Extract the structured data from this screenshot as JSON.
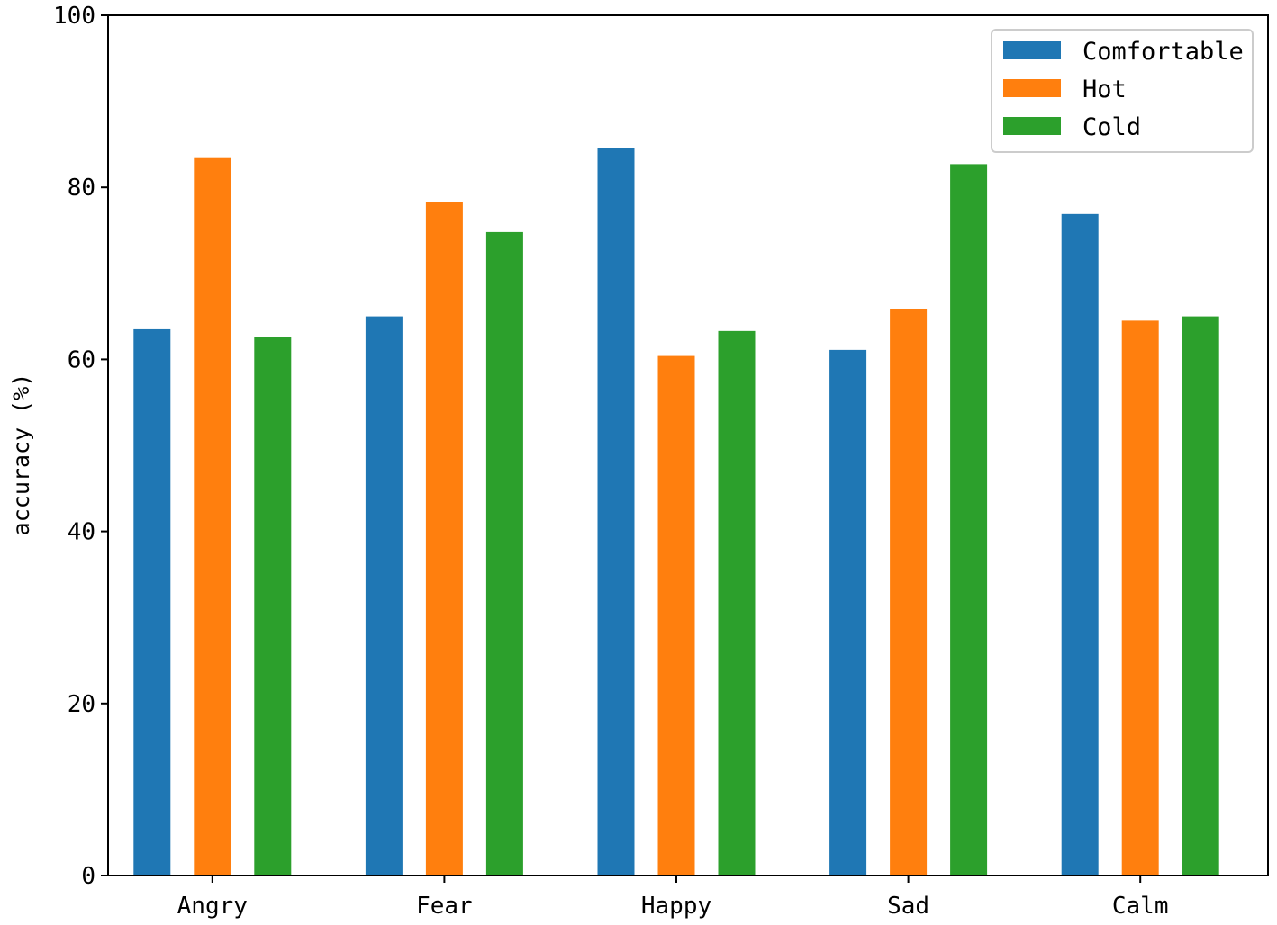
{
  "chart_data": {
    "type": "bar",
    "title": "",
    "xlabel": "",
    "ylabel": "accuracy (%)",
    "ylim": [
      0,
      100
    ],
    "yticks": [
      0,
      20,
      40,
      60,
      80,
      100
    ],
    "grid": false,
    "legend_position": "top-right",
    "categories": [
      "Angry",
      "Fear",
      "Happy",
      "Sad",
      "Calm"
    ],
    "series": [
      {
        "name": "Comfortable",
        "color": "#1f77b4",
        "values": [
          63.5,
          65.0,
          84.6,
          61.1,
          76.9
        ]
      },
      {
        "name": "Hot",
        "color": "#ff7f0e",
        "values": [
          83.4,
          78.3,
          60.4,
          65.9,
          64.5
        ]
      },
      {
        "name": "Cold",
        "color": "#2ca02c",
        "values": [
          62.6,
          74.8,
          63.3,
          82.7,
          65.0
        ]
      }
    ]
  }
}
